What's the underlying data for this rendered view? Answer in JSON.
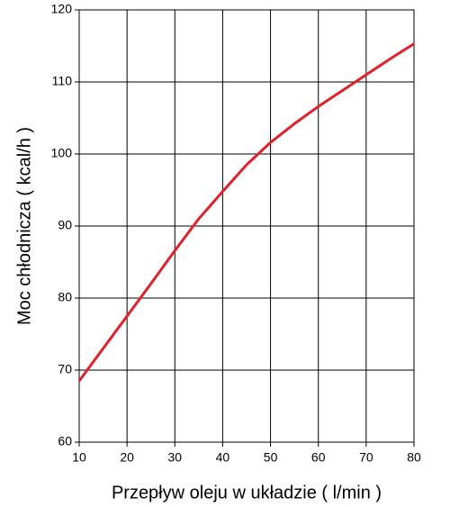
{
  "chart_data": {
    "type": "line",
    "x_label": "Przepływ oleju w układzie ( l/min )",
    "y_label": "Moc chłodnicza ( kcal/h )",
    "x": [
      10,
      15,
      20,
      25,
      30,
      35,
      40,
      45,
      50,
      55,
      60,
      65,
      70,
      75,
      80
    ],
    "values": [
      68.5,
      73,
      77.5,
      82,
      86.6,
      91,
      94.8,
      98.5,
      101.6,
      104.2,
      106.6,
      108.8,
      111,
      113.2,
      115.3
    ],
    "color": "#e0202a",
    "xlim": [
      10,
      80
    ],
    "xticks": [
      10,
      20,
      30,
      40,
      50,
      60,
      70,
      80
    ],
    "ylim": [
      60,
      120
    ],
    "yticks": [
      60,
      70,
      80,
      90,
      100,
      110,
      120
    ],
    "grid": true
  }
}
